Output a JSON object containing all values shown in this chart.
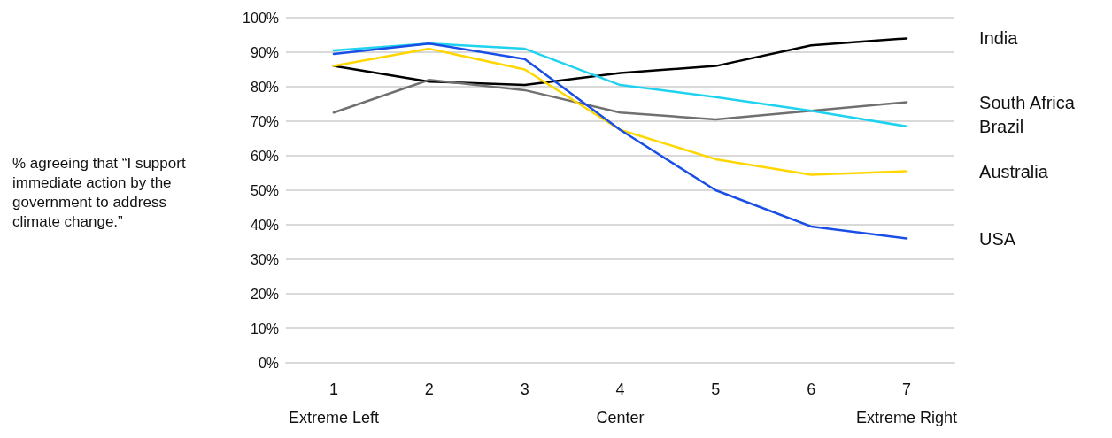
{
  "chart_data": {
    "type": "line",
    "ylabel": "% agreeing that “I support immediate action by the government to address climate change.”",
    "categories": [
      "1\nExtreme Left",
      "2",
      "3",
      "4\nCenter",
      "5",
      "6",
      "7\nExtreme Right"
    ],
    "series": [
      {
        "name": "India",
        "color": "#000000",
        "values": [
          86,
          81.5,
          80.5,
          84,
          86,
          92,
          94
        ]
      },
      {
        "name": "South Africa",
        "color": "#707070",
        "values": [
          72.5,
          82,
          79,
          72.5,
          70.5,
          73,
          75.5
        ]
      },
      {
        "name": "Brazil",
        "color": "#1fd3f0",
        "values": [
          90.5,
          92.5,
          91,
          80.5,
          77,
          73,
          68.5
        ]
      },
      {
        "name": "Australia",
        "color": "#ffd700",
        "values": [
          86,
          91,
          85,
          67.5,
          59,
          54.5,
          55.5
        ]
      },
      {
        "name": "USA",
        "color": "#1a4fe6",
        "values": [
          89.5,
          92.5,
          88,
          67.5,
          50,
          39.5,
          36
        ]
      }
    ],
    "ylim": [
      0,
      100
    ],
    "yticks": [
      {
        "value": 0,
        "label": "0%"
      },
      {
        "value": 10,
        "label": "10%"
      },
      {
        "value": 20,
        "label": "20%"
      },
      {
        "value": 30,
        "label": "30%"
      },
      {
        "value": 40,
        "label": "40%"
      },
      {
        "value": 50,
        "label": "50%"
      },
      {
        "value": 60,
        "label": "60%"
      },
      {
        "value": 70,
        "label": "70%"
      },
      {
        "value": 80,
        "label": "80%"
      },
      {
        "value": 90,
        "label": "90%"
      },
      {
        "value": 100,
        "label": "100%"
      }
    ],
    "grid": "y",
    "legend": false,
    "marker": "none",
    "line_style": "solid"
  }
}
